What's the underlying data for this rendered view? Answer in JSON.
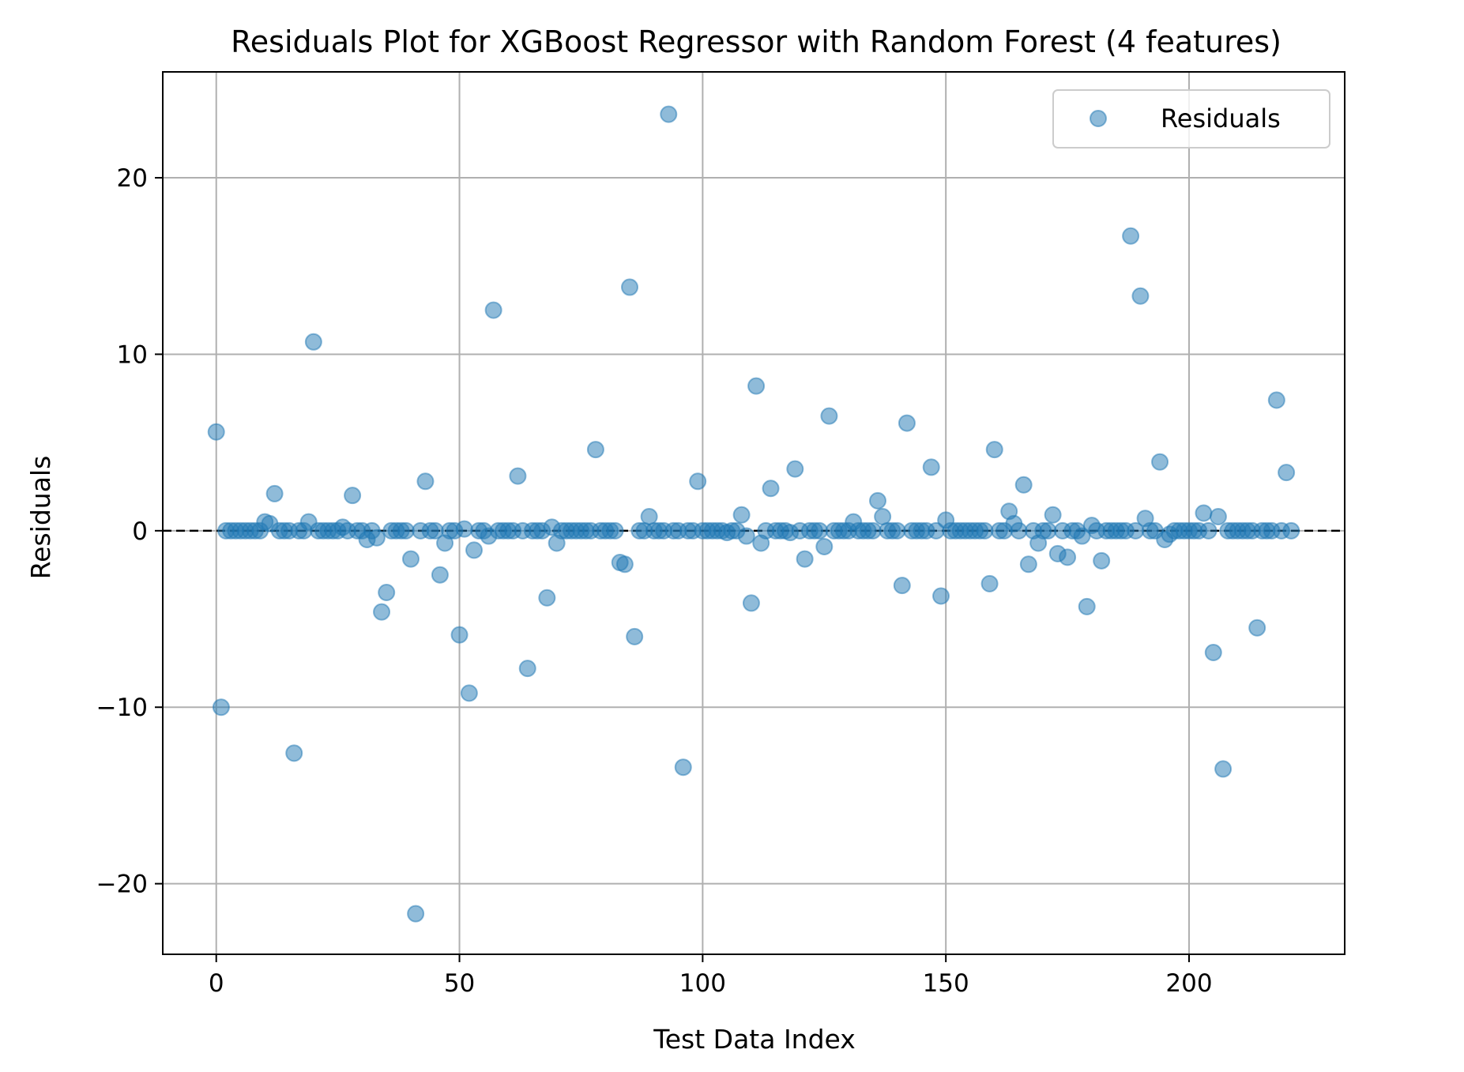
{
  "chart_data": {
    "type": "scatter",
    "title": "Residuals Plot for XGBoost Regressor with Random Forest (4 features)",
    "xlabel": "Test Data Index",
    "ylabel": "Residuals",
    "xlim": [
      -11,
      232
    ],
    "ylim": [
      -24,
      26
    ],
    "xticks": [
      0,
      50,
      100,
      150,
      200
    ],
    "yticks": [
      -20,
      -10,
      0,
      10,
      20
    ],
    "xtick_labels": [
      "0",
      "50",
      "100",
      "150",
      "200"
    ],
    "ytick_labels": [
      "−20",
      "−10",
      "0",
      "10",
      "20"
    ],
    "grid": true,
    "legend_position": "top-right",
    "reference_line": {
      "y": 0,
      "style": "dashed",
      "color": "#000000"
    },
    "marker_color": "#1f77b4",
    "marker_alpha": 0.5,
    "series": [
      {
        "name": "Residuals",
        "points": [
          [
            0,
            5.6
          ],
          [
            1,
            -10.0
          ],
          [
            2,
            0
          ],
          [
            3,
            0
          ],
          [
            4,
            0
          ],
          [
            5,
            0
          ],
          [
            6,
            0
          ],
          [
            7,
            0
          ],
          [
            8,
            0
          ],
          [
            9,
            0
          ],
          [
            10,
            0.5
          ],
          [
            11,
            0.4
          ],
          [
            12,
            2.1
          ],
          [
            13,
            0
          ],
          [
            14,
            0
          ],
          [
            15,
            0
          ],
          [
            16,
            -12.6
          ],
          [
            17,
            0
          ],
          [
            18,
            0
          ],
          [
            19,
            0.5
          ],
          [
            20,
            10.7
          ],
          [
            21,
            0
          ],
          [
            22,
            0
          ],
          [
            23,
            0
          ],
          [
            24,
            0
          ],
          [
            25,
            0
          ],
          [
            26,
            0.2
          ],
          [
            27,
            0
          ],
          [
            28,
            2.0
          ],
          [
            29,
            0
          ],
          [
            30,
            0
          ],
          [
            31,
            -0.5
          ],
          [
            32,
            0
          ],
          [
            33,
            -0.4
          ],
          [
            34,
            -4.6
          ],
          [
            35,
            -3.5
          ],
          [
            36,
            0
          ],
          [
            37,
            0
          ],
          [
            38,
            0
          ],
          [
            39,
            0
          ],
          [
            40,
            -1.6
          ],
          [
            41,
            -21.7
          ],
          [
            42,
            0
          ],
          [
            43,
            2.8
          ],
          [
            44,
            0
          ],
          [
            45,
            0
          ],
          [
            46,
            -2.5
          ],
          [
            47,
            -0.7
          ],
          [
            48,
            0
          ],
          [
            49,
            0
          ],
          [
            50,
            -5.9
          ],
          [
            51,
            0.1
          ],
          [
            52,
            -9.2
          ],
          [
            53,
            -1.1
          ],
          [
            54,
            0
          ],
          [
            55,
            0
          ],
          [
            56,
            -0.3
          ],
          [
            57,
            12.5
          ],
          [
            58,
            0
          ],
          [
            59,
            0
          ],
          [
            60,
            0
          ],
          [
            61,
            0
          ],
          [
            62,
            3.1
          ],
          [
            63,
            0
          ],
          [
            64,
            -7.8
          ],
          [
            65,
            0
          ],
          [
            66,
            0
          ],
          [
            67,
            0
          ],
          [
            68,
            -3.8
          ],
          [
            69,
            0.2
          ],
          [
            70,
            -0.7
          ],
          [
            71,
            0
          ],
          [
            72,
            0
          ],
          [
            73,
            0
          ],
          [
            74,
            0
          ],
          [
            75,
            0
          ],
          [
            76,
            0
          ],
          [
            77,
            0
          ],
          [
            78,
            4.6
          ],
          [
            79,
            0
          ],
          [
            80,
            0
          ],
          [
            81,
            0
          ],
          [
            82,
            0
          ],
          [
            83,
            -1.8
          ],
          [
            84,
            -1.9
          ],
          [
            85,
            13.8
          ],
          [
            86,
            -6.0
          ],
          [
            87,
            0
          ],
          [
            88,
            0
          ],
          [
            89,
            0.8
          ],
          [
            90,
            0
          ],
          [
            91,
            0
          ],
          [
            92,
            0
          ],
          [
            93,
            23.6
          ],
          [
            94,
            0
          ],
          [
            95,
            0
          ],
          [
            96,
            -13.4
          ],
          [
            97,
            0
          ],
          [
            98,
            0
          ],
          [
            99,
            2.8
          ],
          [
            100,
            0
          ],
          [
            101,
            0
          ],
          [
            102,
            0
          ],
          [
            103,
            0
          ],
          [
            104,
            0
          ],
          [
            105,
            -0.1
          ],
          [
            106,
            0
          ],
          [
            107,
            0
          ],
          [
            108,
            0.9
          ],
          [
            109,
            -0.3
          ],
          [
            110,
            -4.1
          ],
          [
            111,
            8.2
          ],
          [
            112,
            -0.7
          ],
          [
            113,
            0
          ],
          [
            114,
            2.4
          ],
          [
            115,
            0
          ],
          [
            116,
            0
          ],
          [
            117,
            0
          ],
          [
            118,
            -0.1
          ],
          [
            119,
            3.5
          ],
          [
            120,
            0
          ],
          [
            121,
            -1.6
          ],
          [
            122,
            0
          ],
          [
            123,
            0
          ],
          [
            124,
            0
          ],
          [
            125,
            -0.9
          ],
          [
            126,
            6.5
          ],
          [
            127,
            0
          ],
          [
            128,
            0
          ],
          [
            129,
            0
          ],
          [
            130,
            0
          ],
          [
            131,
            0.5
          ],
          [
            132,
            0
          ],
          [
            133,
            0
          ],
          [
            134,
            0
          ],
          [
            135,
            0
          ],
          [
            136,
            1.7
          ],
          [
            137,
            0.8
          ],
          [
            138,
            0
          ],
          [
            139,
            0
          ],
          [
            140,
            0
          ],
          [
            141,
            -3.1
          ],
          [
            142,
            6.1
          ],
          [
            143,
            0
          ],
          [
            144,
            0
          ],
          [
            145,
            0
          ],
          [
            146,
            0
          ],
          [
            147,
            3.6
          ],
          [
            148,
            0
          ],
          [
            149,
            -3.7
          ],
          [
            150,
            0.6
          ],
          [
            151,
            0
          ],
          [
            152,
            0
          ],
          [
            153,
            0
          ],
          [
            154,
            0
          ],
          [
            155,
            0
          ],
          [
            156,
            0
          ],
          [
            157,
            0
          ],
          [
            158,
            0
          ],
          [
            159,
            -3.0
          ],
          [
            160,
            4.6
          ],
          [
            161,
            0
          ],
          [
            162,
            0
          ],
          [
            163,
            1.1
          ],
          [
            164,
            0.4
          ],
          [
            165,
            0
          ],
          [
            166,
            2.6
          ],
          [
            167,
            -1.9
          ],
          [
            168,
            0
          ],
          [
            169,
            -0.7
          ],
          [
            170,
            0
          ],
          [
            171,
            0
          ],
          [
            172,
            0.9
          ],
          [
            173,
            -1.3
          ],
          [
            174,
            0
          ],
          [
            175,
            -1.5
          ],
          [
            176,
            0
          ],
          [
            177,
            0
          ],
          [
            178,
            -0.3
          ],
          [
            179,
            -4.3
          ],
          [
            180,
            0.3
          ],
          [
            181,
            0
          ],
          [
            182,
            -1.7
          ],
          [
            183,
            0
          ],
          [
            184,
            0
          ],
          [
            185,
            0
          ],
          [
            186,
            0
          ],
          [
            187,
            0
          ],
          [
            188,
            16.7
          ],
          [
            189,
            0
          ],
          [
            190,
            13.3
          ],
          [
            191,
            0.7
          ],
          [
            192,
            0
          ],
          [
            193,
            0
          ],
          [
            194,
            3.9
          ],
          [
            195,
            -0.5
          ],
          [
            196,
            -0.2
          ],
          [
            197,
            0
          ],
          [
            198,
            0
          ],
          [
            199,
            0
          ],
          [
            200,
            0
          ],
          [
            201,
            0
          ],
          [
            202,
            0
          ],
          [
            203,
            1.0
          ],
          [
            204,
            0
          ],
          [
            205,
            -6.9
          ],
          [
            206,
            0.8
          ],
          [
            207,
            -13.5
          ],
          [
            208,
            0
          ],
          [
            209,
            0
          ],
          [
            210,
            0
          ],
          [
            211,
            0
          ],
          [
            212,
            0
          ],
          [
            213,
            0
          ],
          [
            214,
            -5.5
          ],
          [
            215,
            0
          ],
          [
            216,
            0
          ],
          [
            217,
            0
          ],
          [
            218,
            7.4
          ],
          [
            219,
            0
          ],
          [
            220,
            3.3
          ],
          [
            221,
            0
          ]
        ]
      }
    ]
  }
}
